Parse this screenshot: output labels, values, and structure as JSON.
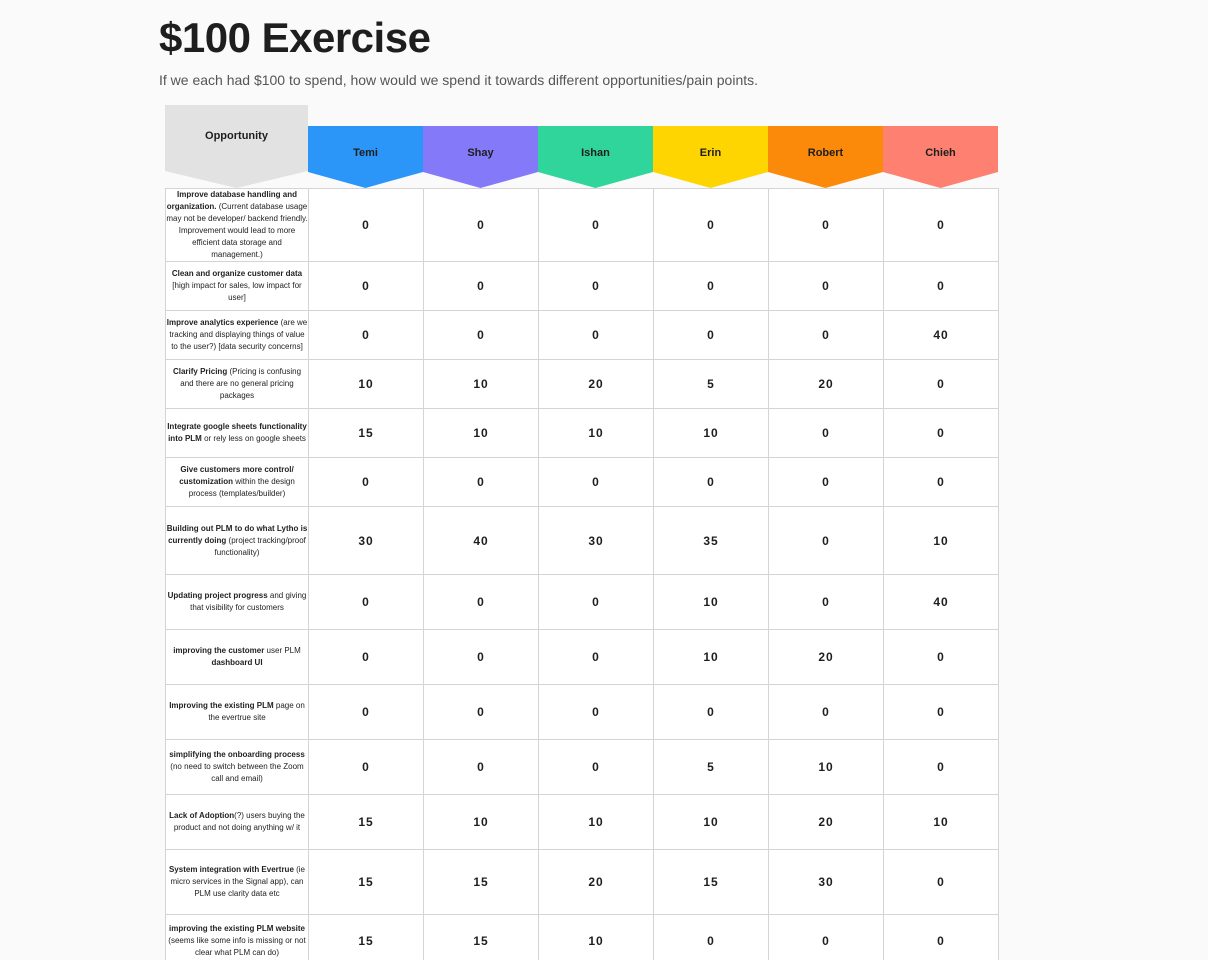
{
  "title": "$100 Exercise",
  "subtitle": "If we each had $100 to spend, how would we spend it towards different opportunities/pain points.",
  "opportunity_header": "Opportunity",
  "people": [
    {
      "name": "Temi",
      "color": "#2b96f8"
    },
    {
      "name": "Shay",
      "color": "#8479f8"
    },
    {
      "name": "Ishan",
      "color": "#2fd59a"
    },
    {
      "name": "Erin",
      "color": "#fed500"
    },
    {
      "name": "Robert",
      "color": "#fc8a0a"
    },
    {
      "name": "Chieh",
      "color": "#fd8070"
    }
  ],
  "rows": [
    {
      "bold": "Improve database handling and organization.",
      "rest": " (Current database usage may not be developer/ backend friendly. Improvement would lead to more efficient data storage and management.)",
      "values": [
        "0",
        "0",
        "0",
        "0",
        "0",
        "0"
      ]
    },
    {
      "bold": "Clean and organize customer data",
      "rest": " [high impact for sales, low impact for user]",
      "values": [
        "0",
        "0",
        "0",
        "0",
        "0",
        "0"
      ]
    },
    {
      "bold": "Improve analytics experience",
      "rest": " (are we tracking and displaying things of value to the user?) [data security concerns]",
      "values": [
        "0",
        "0",
        "0",
        "0",
        "0",
        "40"
      ]
    },
    {
      "bold": "Clarify Pricing",
      "rest": " (Pricing is confusing and there are no general pricing packages",
      "values": [
        "10",
        "10",
        "20",
        "5",
        "20",
        "0"
      ]
    },
    {
      "bold": "Integrate google sheets functionality into PLM",
      "rest": " or rely less on google sheets",
      "values": [
        "15",
        "10",
        "10",
        "10",
        "0",
        "0"
      ]
    },
    {
      "bold": "Give customers more control/ customization",
      "rest": " within the design process (templates/builder)",
      "values": [
        "0",
        "0",
        "0",
        "0",
        "0",
        "0"
      ]
    },
    {
      "bold": "Building out  PLM to do what Lytho is currently doing",
      "rest": " (project tracking/proof functionality)",
      "values": [
        "30",
        "40",
        "30",
        "35",
        "0",
        "10"
      ]
    },
    {
      "bold": "Updating project progress",
      "rest": " and giving that visibility for customers",
      "values": [
        "0",
        "0",
        "0",
        "10",
        "0",
        "40"
      ]
    },
    {
      "bold": "improving the customer",
      "rest": " user PLM ",
      "bold2": "dashboard UI",
      "values": [
        "0",
        "0",
        "0",
        "10",
        "20",
        "0"
      ]
    },
    {
      "bold": "Improving the existing PLM",
      "rest": " page on the evertrue site",
      "values": [
        "0",
        "0",
        "0",
        "0",
        "0",
        "0"
      ]
    },
    {
      "bold": "simplifying the onboarding process",
      "rest": " (no need to switch between the Zoom call and email)",
      "values": [
        "0",
        "0",
        "0",
        "5",
        "10",
        "0"
      ]
    },
    {
      "bold": "Lack of Adoption",
      "rest": "(?) users buying the product and not doing anything w/ it",
      "values": [
        "15",
        "10",
        "10",
        "10",
        "20",
        "10"
      ]
    },
    {
      "bold": "System integration with Evertrue",
      "rest": " (ie micro services in the Signal app), can PLM use clarity data etc",
      "values": [
        "15",
        "15",
        "20",
        "15",
        "30",
        "0"
      ]
    },
    {
      "bold": "improving the existing PLM website",
      "rest": " (seems like some info is missing or not clear what PLM can do)",
      "values": [
        "15",
        "15",
        "10",
        "0",
        "0",
        "0"
      ]
    }
  ]
}
